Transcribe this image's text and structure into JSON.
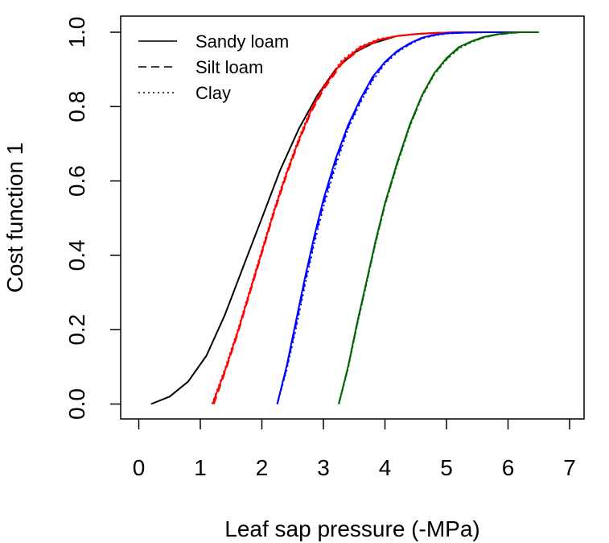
{
  "chart_data": {
    "type": "line",
    "xlabel": "Leaf sap pressure (-MPa)",
    "ylabel": "Cost function 1",
    "xlim": [
      0,
      7
    ],
    "ylim": [
      0,
      1
    ],
    "xticks": [
      "0",
      "1",
      "2",
      "3",
      "4",
      "5",
      "6",
      "7"
    ],
    "yticks": [
      "0.0",
      "0.2",
      "0.4",
      "0.6",
      "0.8",
      "1.0"
    ],
    "grid": false,
    "legend_position": "top-left",
    "legend": [
      {
        "label": "Sandy loam",
        "dash": "solid"
      },
      {
        "label": "Silt loam",
        "dash": "dashed"
      },
      {
        "label": "Clay",
        "dash": "dotted"
      }
    ],
    "series": [
      {
        "color": "#000000",
        "dash": "solid",
        "x": [
          0.2,
          0.5,
          0.8,
          1.1,
          1.4,
          1.7,
          2.0,
          2.3,
          2.6,
          2.9,
          3.2,
          3.5,
          3.8,
          4.2,
          4.6,
          5.0,
          5.5,
          6.0
        ],
        "y": [
          0.0,
          0.02,
          0.06,
          0.13,
          0.24,
          0.37,
          0.5,
          0.63,
          0.74,
          0.83,
          0.9,
          0.945,
          0.97,
          0.99,
          0.996,
          0.999,
          1.0,
          1.0
        ]
      },
      {
        "color": "#ff0000",
        "dash": "solid",
        "x": [
          1.2,
          1.4,
          1.6,
          1.8,
          2.0,
          2.2,
          2.4,
          2.6,
          2.8,
          3.0,
          3.3,
          3.6,
          3.9,
          4.2,
          4.5,
          4.8,
          5.2,
          5.6,
          6.0,
          6.3
        ],
        "y": [
          0.0,
          0.09,
          0.19,
          0.3,
          0.41,
          0.52,
          0.62,
          0.71,
          0.79,
          0.85,
          0.92,
          0.96,
          0.98,
          0.99,
          0.995,
          0.998,
          1.0,
          1.0,
          1.0,
          1.0
        ]
      },
      {
        "color": "#ff0000",
        "dash": "dashed",
        "x": [
          1.22,
          1.4,
          1.6,
          1.8,
          2.0,
          2.2,
          2.4,
          2.6,
          2.8,
          3.0,
          3.3,
          3.6,
          3.9,
          4.2,
          4.5,
          4.8,
          5.2,
          5.6,
          6.0,
          6.3
        ],
        "y": [
          0.0,
          0.085,
          0.185,
          0.295,
          0.405,
          0.515,
          0.615,
          0.705,
          0.785,
          0.845,
          0.915,
          0.955,
          0.978,
          0.99,
          0.995,
          0.998,
          1.0,
          1.0,
          1.0,
          1.0
        ]
      },
      {
        "color": "#ff0000",
        "dash": "dotted",
        "x": [
          1.19,
          1.4,
          1.6,
          1.8,
          2.0,
          2.2,
          2.4,
          2.6,
          2.8,
          3.0,
          3.3,
          3.6,
          3.9,
          4.2,
          4.5,
          4.8,
          5.2,
          5.6,
          6.0,
          6.3
        ],
        "y": [
          0.0,
          0.095,
          0.195,
          0.305,
          0.415,
          0.525,
          0.625,
          0.715,
          0.795,
          0.855,
          0.925,
          0.962,
          0.982,
          0.99,
          0.995,
          0.998,
          1.0,
          1.0,
          1.0,
          1.0
        ]
      },
      {
        "color": "#0000ff",
        "dash": "solid",
        "x": [
          2.25,
          2.4,
          2.55,
          2.7,
          2.85,
          3.0,
          3.2,
          3.4,
          3.6,
          3.8,
          4.0,
          4.2,
          4.4,
          4.6,
          4.8,
          5.0,
          5.3,
          5.6,
          6.0,
          6.3
        ],
        "y": [
          0.0,
          0.1,
          0.22,
          0.34,
          0.45,
          0.55,
          0.66,
          0.75,
          0.82,
          0.88,
          0.92,
          0.95,
          0.97,
          0.985,
          0.993,
          0.997,
          0.999,
          1.0,
          1.0,
          1.0
        ]
      },
      {
        "color": "#0000ff",
        "dash": "dashed",
        "x": [
          2.25,
          2.4,
          2.55,
          2.7,
          2.85,
          3.0,
          3.2,
          3.4,
          3.6,
          3.8,
          4.0,
          4.2,
          4.4,
          4.6,
          4.8,
          5.0,
          5.3,
          5.6,
          6.0,
          6.3
        ],
        "y": [
          0.0,
          0.095,
          0.21,
          0.33,
          0.44,
          0.54,
          0.65,
          0.745,
          0.815,
          0.875,
          0.918,
          0.948,
          0.968,
          0.984,
          0.992,
          0.997,
          0.999,
          1.0,
          1.0,
          1.0
        ]
      },
      {
        "color": "#0000ff",
        "dash": "dotted",
        "x": [
          2.25,
          2.4,
          2.55,
          2.7,
          2.85,
          3.0,
          3.2,
          3.4,
          3.6,
          3.8,
          4.0,
          4.2,
          4.4,
          4.6,
          4.8,
          5.0,
          5.3,
          5.6,
          6.0,
          6.3
        ],
        "y": [
          0.0,
          0.09,
          0.2,
          0.32,
          0.43,
          0.53,
          0.64,
          0.74,
          0.81,
          0.87,
          0.915,
          0.946,
          0.967,
          0.983,
          0.991,
          0.996,
          0.999,
          1.0,
          1.0,
          1.0
        ]
      },
      {
        "color": "#006400",
        "dash": "solid",
        "x": [
          3.25,
          3.4,
          3.55,
          3.7,
          3.85,
          4.0,
          4.2,
          4.4,
          4.6,
          4.8,
          5.0,
          5.2,
          5.4,
          5.6,
          5.8,
          6.0,
          6.2,
          6.5
        ],
        "y": [
          0.0,
          0.1,
          0.22,
          0.33,
          0.44,
          0.54,
          0.65,
          0.75,
          0.83,
          0.89,
          0.93,
          0.96,
          0.975,
          0.987,
          0.994,
          0.998,
          1.0,
          1.0
        ]
      },
      {
        "color": "#006400",
        "dash": "dashed",
        "x": [
          3.25,
          3.4,
          3.55,
          3.7,
          3.85,
          4.0,
          4.2,
          4.4,
          4.6,
          4.8,
          5.0,
          5.2,
          5.4,
          5.6,
          5.8,
          6.0,
          6.2,
          6.5
        ],
        "y": [
          0.0,
          0.098,
          0.217,
          0.327,
          0.437,
          0.537,
          0.647,
          0.747,
          0.828,
          0.888,
          0.928,
          0.958,
          0.974,
          0.986,
          0.993,
          0.997,
          1.0,
          1.0
        ]
      },
      {
        "color": "#006400",
        "dash": "dotted",
        "x": [
          3.25,
          3.4,
          3.55,
          3.7,
          3.85,
          4.0,
          4.2,
          4.4,
          4.6,
          4.8,
          5.0,
          5.2,
          5.4,
          5.6,
          5.8,
          6.0,
          6.2,
          6.5
        ],
        "y": [
          0.0,
          0.096,
          0.214,
          0.324,
          0.434,
          0.534,
          0.644,
          0.744,
          0.826,
          0.886,
          0.926,
          0.956,
          0.973,
          0.985,
          0.993,
          0.997,
          1.0,
          1.0
        ]
      }
    ]
  }
}
